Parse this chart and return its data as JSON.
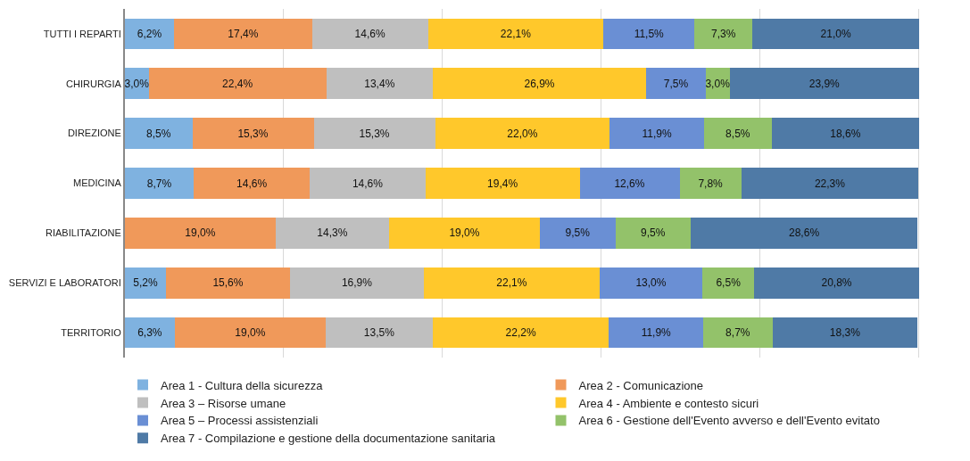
{
  "chart_data": {
    "type": "bar",
    "orientation": "horizontal",
    "stacked": true,
    "categories": [
      "TUTTI I REPARTI",
      "CHIRURGIA",
      "DIREZIONE",
      "MEDICINA",
      "RIABILITAZIONE",
      "SERVIZI E LABORATORI",
      "TERRITORIO"
    ],
    "series": [
      {
        "name": "Area 1 - Cultura della sicurezza",
        "color": "#7fb2e0",
        "values": [
          6.2,
          3.0,
          8.5,
          8.7,
          null,
          5.2,
          6.3
        ],
        "value_labels": [
          "6,2%",
          "3,0%",
          "8,5%",
          "8,7%",
          null,
          "5,2%",
          "6,3%"
        ]
      },
      {
        "name": "Area 2 - Comunicazione",
        "color": "#f0995a",
        "values": [
          17.4,
          22.4,
          15.3,
          14.6,
          19.0,
          15.6,
          19.0
        ],
        "value_labels": [
          "17,4%",
          "22,4%",
          "15,3%",
          "14,6%",
          "19,0%",
          "15,6%",
          "19,0%"
        ]
      },
      {
        "name": "Area 3 – Risorse umane",
        "color": "#bfbfbf",
        "values": [
          14.6,
          13.4,
          15.3,
          14.6,
          14.3,
          16.9,
          13.5
        ],
        "value_labels": [
          "14,6%",
          "13,4%",
          "15,3%",
          "14,6%",
          "14,3%",
          "16,9%",
          "13,5%"
        ]
      },
      {
        "name": "Area 4 - Ambiente e contesto sicuri",
        "color": "#ffc82b",
        "values": [
          22.1,
          26.9,
          22.0,
          19.4,
          19.0,
          22.1,
          22.2
        ],
        "value_labels": [
          "22,1%",
          "26,9%",
          "22,0%",
          "19,4%",
          "19,0%",
          "22,1%",
          "22,2%"
        ]
      },
      {
        "name": "Area 5 – Processi assistenziali",
        "color": "#6a8fd4",
        "values": [
          11.5,
          7.5,
          11.9,
          12.6,
          9.5,
          13.0,
          11.9
        ],
        "value_labels": [
          "11,5%",
          "7,5%",
          "11,9%",
          "12,6%",
          "9,5%",
          "13,0%",
          "11,9%"
        ]
      },
      {
        "name": "Area 6 - Gestione dell'Evento avverso e dell'Evento evitato",
        "color": "#93c26a",
        "values": [
          7.3,
          3.0,
          8.5,
          7.8,
          9.5,
          6.5,
          8.7
        ],
        "value_labels": [
          "7,3%",
          "3,0%",
          "8,5%",
          "7,8%",
          "9,5%",
          "6,5%",
          "8,7%"
        ]
      },
      {
        "name": "Area 7 - Compilazione e gestione della documentazione sanitaria",
        "color": "#4f7aa6",
        "values": [
          21.0,
          23.9,
          18.6,
          22.3,
          28.6,
          20.8,
          18.3
        ],
        "value_labels": [
          "21,0%",
          "23,9%",
          "18,6%",
          "22,3%",
          "28,6%",
          "20,8%",
          "18,3%"
        ]
      }
    ],
    "grid": "x",
    "legend": "bottom",
    "tick_labels": "y"
  }
}
